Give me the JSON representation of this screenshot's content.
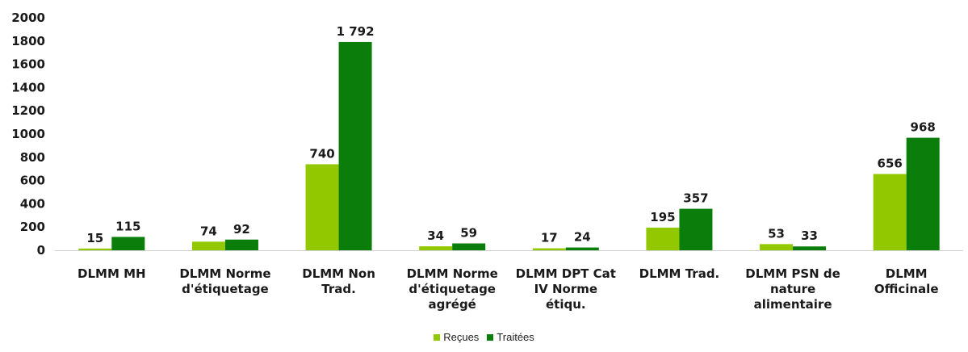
{
  "chart_data": {
    "type": "bar",
    "categories": [
      [
        "DLMM MH"
      ],
      [
        "DLMM Norme",
        "d'étiquetage"
      ],
      [
        "DLMM Non",
        "Trad."
      ],
      [
        "DLMM Norme",
        "d'étiquetage",
        "agrégé"
      ],
      [
        "DLMM DPT Cat",
        "IV Norme",
        "étiqu."
      ],
      [
        "DLMM Trad."
      ],
      [
        "DLMM PSN de",
        "nature",
        "alimentaire"
      ],
      [
        "DLMM",
        "Officinale"
      ]
    ],
    "series": [
      {
        "name": "Reçues",
        "color": "#92c800",
        "values": [
          15,
          74,
          740,
          34,
          17,
          195,
          53,
          656
        ],
        "labels": [
          "15",
          "74",
          "740",
          "34",
          "17",
          "195",
          "53",
          "656"
        ]
      },
      {
        "name": "Traitées",
        "color": "#0a7d0a",
        "values": [
          115,
          92,
          1792,
          59,
          24,
          357,
          33,
          968
        ],
        "labels": [
          "115",
          "92",
          "1 792",
          "59",
          "24",
          "357",
          "33",
          "968"
        ]
      }
    ],
    "yticks": [
      "0",
      "200",
      "400",
      "600",
      "800",
      "1000",
      "1200",
      "1400",
      "1600",
      "1800",
      "2000"
    ],
    "ylim": [
      0,
      2000
    ],
    "grid": false,
    "legend_position": "bottom"
  }
}
